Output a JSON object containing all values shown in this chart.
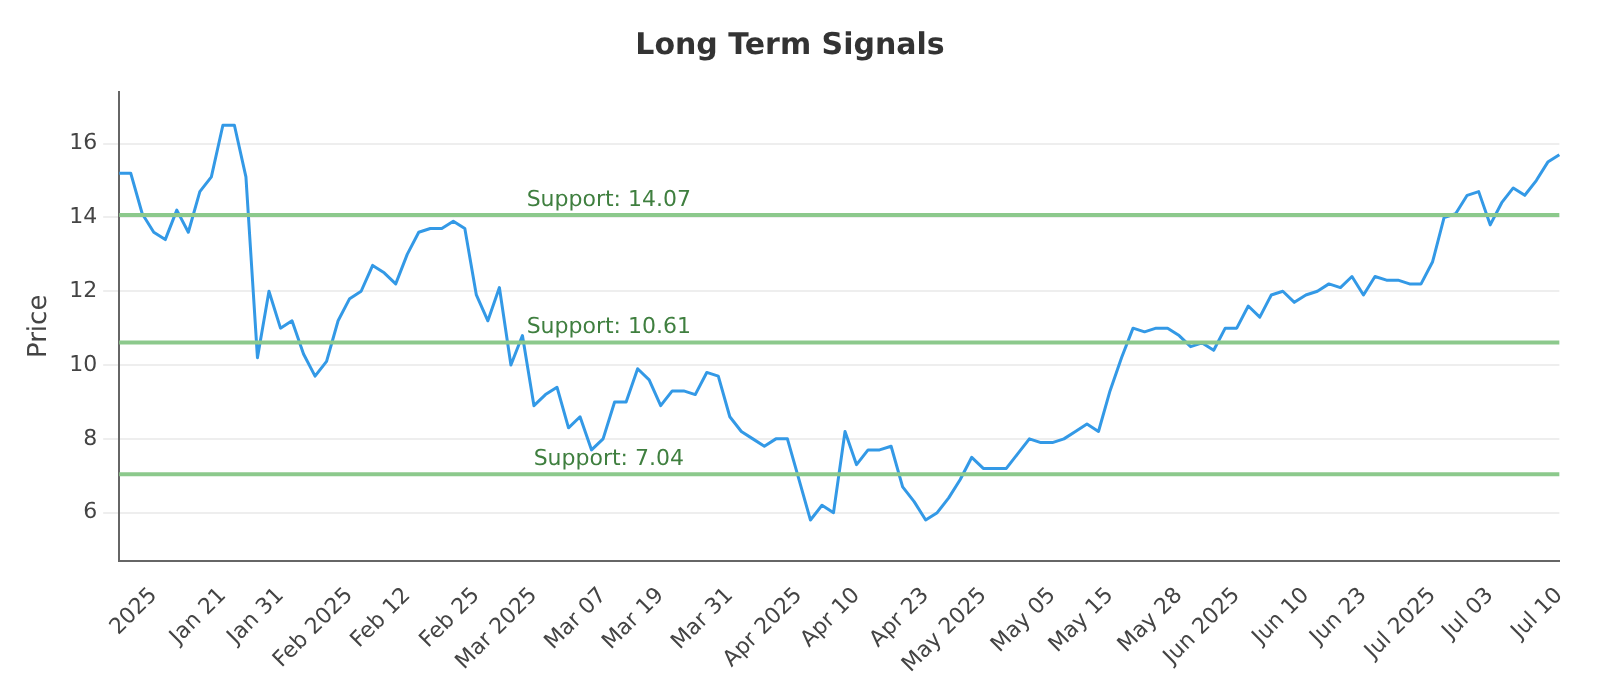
{
  "chart_data": {
    "type": "line",
    "title": "Long Term Signals",
    "ylabel": "Price",
    "categories": [
      null,
      null,
      null,
      "2025",
      null,
      null,
      null,
      null,
      null,
      "Jan 21",
      null,
      null,
      null,
      null,
      "Jan 31",
      null,
      null,
      null,
      null,
      null,
      "Feb 2025",
      null,
      null,
      null,
      null,
      "Feb 12",
      null,
      null,
      null,
      null,
      null,
      "Feb 25",
      null,
      null,
      null,
      null,
      "Mar 2025",
      null,
      null,
      null,
      null,
      null,
      "Mar 07",
      null,
      null,
      null,
      null,
      "Mar 19",
      null,
      null,
      null,
      null,
      null,
      "Mar 31",
      null,
      null,
      null,
      null,
      null,
      "Apr 2025",
      null,
      null,
      null,
      null,
      "Apr 10",
      null,
      null,
      null,
      null,
      null,
      "Apr 23",
      null,
      null,
      null,
      null,
      "May 2025",
      null,
      null,
      null,
      null,
      null,
      "May 05",
      null,
      null,
      null,
      null,
      "May 15",
      null,
      null,
      null,
      null,
      null,
      "May 28",
      null,
      null,
      null,
      null,
      "Jun 2025",
      null,
      null,
      null,
      null,
      null,
      "Jun 10",
      null,
      null,
      null,
      null,
      "Jun 23",
      null,
      null,
      null,
      null,
      null,
      "Jul 2025",
      null,
      null,
      null,
      null,
      "Jul 03",
      null,
      null,
      null,
      null,
      null,
      "Jul 10"
    ],
    "series": [
      {
        "color": "#3399e6",
        "values": [
          15.2,
          15.2,
          14.1,
          13.6,
          13.4,
          14.2,
          13.6,
          14.7,
          15.1,
          16.5,
          16.5,
          15.1,
          10.2,
          12.0,
          11.0,
          11.2,
          10.3,
          9.7,
          10.1,
          11.2,
          11.8,
          12.0,
          12.7,
          12.5,
          12.2,
          13.0,
          13.6,
          13.7,
          13.7,
          13.9,
          13.7,
          11.9,
          11.2,
          12.1,
          10.0,
          10.8,
          8.9,
          9.2,
          9.4,
          8.3,
          8.6,
          7.7,
          8.0,
          9.0,
          9.0,
          9.9,
          9.6,
          8.9,
          9.3,
          9.3,
          9.2,
          9.8,
          9.7,
          8.6,
          8.2,
          8.0,
          7.8,
          8.0,
          8.0,
          6.9,
          5.8,
          6.2,
          6.0,
          8.2,
          7.3,
          7.7,
          7.7,
          7.8,
          6.7,
          6.3,
          5.8,
          6.0,
          6.4,
          6.9,
          7.5,
          7.2,
          7.2,
          7.2,
          7.6,
          8.0,
          7.9,
          7.9,
          8.0,
          8.2,
          8.4,
          8.2,
          9.3,
          10.2,
          11.0,
          10.9,
          11.0,
          11.0,
          10.8,
          10.5,
          10.6,
          10.4,
          11.0,
          11.0,
          11.6,
          11.3,
          11.9,
          12.0,
          11.7,
          11.9,
          12.0,
          12.2,
          12.1,
          12.4,
          11.9,
          12.4,
          12.3,
          12.3,
          12.2,
          12.2,
          12.8,
          14.0,
          14.1,
          14.6,
          14.7,
          13.8,
          14.4,
          14.8,
          14.6,
          15.0,
          15.5,
          15.7
        ]
      }
    ],
    "ylim": [
      4.7,
      17.4
    ],
    "yticks": [
      6,
      8,
      10,
      12,
      14,
      16
    ],
    "grid": "y",
    "legend": false,
    "marker": "none",
    "line_style": "solid",
    "ref_lines": [
      {
        "axis": "y",
        "value": 14.07,
        "label": "Support: 14.07",
        "color": "#8cc98c"
      },
      {
        "axis": "y",
        "value": 10.61,
        "label": "Support: 10.61",
        "color": "#8cc98c"
      },
      {
        "axis": "y",
        "value": 7.04,
        "label": "Support: 7.04",
        "color": "#8cc98c"
      }
    ]
  }
}
